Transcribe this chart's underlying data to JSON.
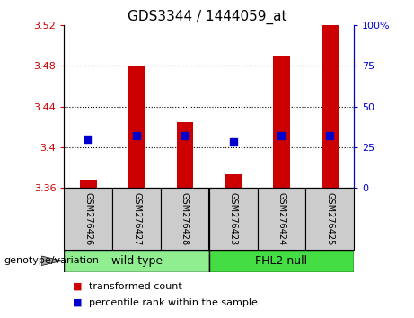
{
  "title": "GDS3344 / 1444059_at",
  "samples": [
    "GSM276426",
    "GSM276427",
    "GSM276428",
    "GSM276423",
    "GSM276424",
    "GSM276425"
  ],
  "transformed_counts": [
    3.368,
    3.48,
    3.425,
    3.373,
    3.49,
    3.52
  ],
  "percentile_ranks": [
    30,
    32,
    32,
    28,
    32,
    32
  ],
  "ylim_left": [
    3.36,
    3.52
  ],
  "ylim_right": [
    0,
    100
  ],
  "yticks_left": [
    3.36,
    3.4,
    3.44,
    3.48,
    3.52
  ],
  "yticks_right": [
    0,
    25,
    50,
    75,
    100
  ],
  "grid_lines": [
    3.4,
    3.44,
    3.48
  ],
  "bar_color": "#CC0000",
  "dot_color": "#0000CC",
  "bar_width": 0.35,
  "dot_size": 30,
  "background_sample": "#cccccc",
  "wild_type_color": "#90EE90",
  "fhl2_color": "#44DD44",
  "legend_items": [
    {
      "label": "transformed count",
      "color": "#CC0000"
    },
    {
      "label": "percentile rank within the sample",
      "color": "#0000CC"
    }
  ],
  "genotype_label": "genotype/variation",
  "title_fontsize": 11,
  "tick_fontsize": 8,
  "sample_fontsize": 7,
  "group_fontsize": 9,
  "legend_fontsize": 8
}
